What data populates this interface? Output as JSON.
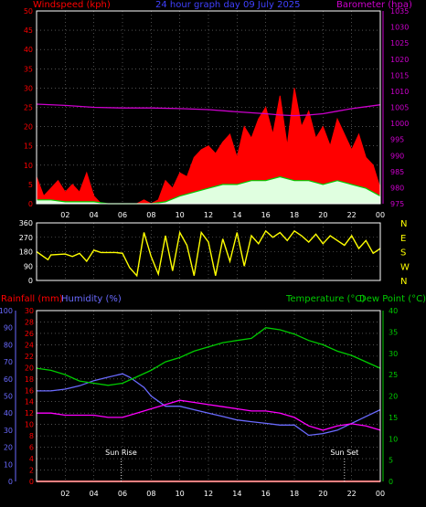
{
  "header": {
    "left_label": "Windspeed (kph)",
    "center_title": "24 hour graph day 09 July 2025",
    "right_label": "Barometer (hpa)"
  },
  "colors": {
    "background": "#000000",
    "frame": "#ffffff",
    "grid": "#7f7f7f",
    "wind_axis": "#ff0000",
    "barometer": "#cc00cc",
    "direction": "#ffff00",
    "gust_fill": "#ff0000",
    "avg_fill": "#e0ffe0",
    "avg_line": "#00cc00",
    "rain": "#ff0000",
    "humidity": "#6a6aff",
    "temperature": "#00cc00",
    "dewpoint": "#ff00ff",
    "sun_markers": "#ffffff"
  },
  "x_axis": {
    "tick_labels": [
      "02",
      "04",
      "06",
      "08",
      "10",
      "12",
      "14",
      "16",
      "18",
      "20",
      "22",
      "00"
    ],
    "range_hours": [
      0,
      24
    ]
  },
  "chart_data": [
    {
      "id": "wind_barometer",
      "type": "area",
      "ylim_left": [
        0,
        50
      ],
      "left_ticks": [
        "0",
        "5",
        "10",
        "15",
        "20",
        "25",
        "30",
        "35",
        "40",
        "45",
        "50"
      ],
      "ylim_right": [
        975,
        1035
      ],
      "right_ticks": [
        "975",
        "980",
        "985",
        "990",
        "995",
        "1000",
        "1005",
        "1010",
        "1015",
        "1020",
        "1025",
        "1030",
        "1035"
      ],
      "series": [
        {
          "name": "Windspeed (kph)",
          "style": "gust",
          "axis": "left",
          "x": [
            0,
            0.5,
            1,
            1.5,
            2,
            2.5,
            3,
            3.5,
            4,
            4.5,
            5,
            5.5,
            6,
            6.5,
            7,
            7.5,
            8,
            8.5,
            9,
            9.5,
            10,
            10.5,
            11,
            11.5,
            12,
            12.5,
            13,
            13.5,
            14,
            14.5,
            15,
            15.5,
            16,
            16.5,
            17,
            17.5,
            18,
            18.5,
            19,
            19.5,
            20,
            20.5,
            21,
            21.5,
            22,
            22.5,
            23,
            23.5,
            24
          ],
          "values": [
            7,
            2,
            4,
            6,
            3,
            5,
            3,
            8,
            2,
            0,
            0,
            0,
            0,
            0,
            0,
            1,
            0,
            1,
            6,
            4,
            8,
            7,
            12,
            14,
            15,
            13,
            16,
            18,
            12,
            20,
            17,
            22,
            25,
            18,
            28,
            15,
            30,
            20,
            24,
            17,
            20,
            15,
            22,
            18,
            14,
            18,
            12,
            10,
            4
          ]
        },
        {
          "name": "Average",
          "style": "avg",
          "axis": "left",
          "x": [
            0,
            1,
            2,
            3,
            4,
            5,
            6,
            7,
            8,
            9,
            10,
            11,
            12,
            13,
            14,
            15,
            16,
            17,
            18,
            19,
            20,
            21,
            22,
            23,
            24
          ],
          "values": [
            1,
            1,
            0.5,
            0.5,
            0.5,
            0,
            0,
            0,
            0,
            0.5,
            2,
            3,
            4,
            5,
            5,
            6,
            6,
            7,
            6,
            6,
            5,
            6,
            5,
            4,
            2
          ]
        },
        {
          "name": "Barometer (hpa)",
          "style": "line",
          "axis": "right",
          "x": [
            0,
            2,
            4,
            6,
            8,
            10,
            12,
            14,
            16,
            17,
            18,
            19,
            20,
            21,
            22,
            23,
            24
          ],
          "values": [
            1006,
            1005.6,
            1005,
            1004.8,
            1004.8,
            1004.6,
            1004.3,
            1003.6,
            1003,
            1002.6,
            1002.4,
            1002.6,
            1003,
            1003.8,
            1004.6,
            1005.2,
            1005.8
          ]
        }
      ]
    },
    {
      "id": "wind_direction",
      "type": "line",
      "ylim": [
        0,
        360
      ],
      "left_ticks": [
        "0",
        "90",
        "180",
        "270",
        "360"
      ],
      "right_labels": [
        "N",
        "W",
        "S",
        "E",
        "N"
      ],
      "series": [
        {
          "name": "Direction",
          "x": [
            0,
            0.8,
            1,
            2,
            2.5,
            3,
            3.5,
            4,
            4.5,
            5,
            5.5,
            6,
            6.5,
            7,
            7.5,
            8,
            8.5,
            9,
            9.5,
            10,
            10.5,
            11,
            11.5,
            12,
            12.5,
            13,
            13.5,
            14,
            14.5,
            15,
            15.5,
            16,
            16.5,
            17,
            17.5,
            18,
            18.5,
            19,
            19.5,
            20,
            20.5,
            21,
            21.5,
            22,
            22.5,
            23,
            23.5,
            24
          ],
          "values": [
            180,
            130,
            160,
            165,
            150,
            170,
            120,
            190,
            175,
            175,
            175,
            170,
            80,
            30,
            300,
            150,
            40,
            280,
            60,
            300,
            220,
            30,
            300,
            240,
            30,
            260,
            120,
            300,
            90,
            280,
            230,
            310,
            270,
            300,
            250,
            310,
            280,
            240,
            290,
            230,
            280,
            250,
            220,
            280,
            200,
            250,
            170,
            200
          ]
        }
      ]
    },
    {
      "id": "temp_humidity_rain",
      "type": "line",
      "left_outer_label": "Rainfall (mm)",
      "left_inner_label": "Humidity (%)",
      "right_label": "Temperature (°C)",
      "right_label2": "Dew Point (°C)",
      "ylim_rain": [
        0,
        30
      ],
      "rain_ticks": [
        "0",
        "2",
        "4",
        "6",
        "8",
        "10",
        "12",
        "14",
        "16",
        "18",
        "20",
        "22",
        "24",
        "26",
        "28",
        "30"
      ],
      "ylim_humidity": [
        0,
        100
      ],
      "humidity_ticks": [
        "0",
        "10",
        "20",
        "30",
        "40",
        "50",
        "60",
        "70",
        "80",
        "90",
        "100"
      ],
      "ylim_temp": [
        0,
        40
      ],
      "temp_ticks": [
        "0",
        "5",
        "10",
        "15",
        "20",
        "25",
        "30",
        "35",
        "40"
      ],
      "annotations": [
        {
          "text": "Sun Rise",
          "x": 5.9
        },
        {
          "text": "Sun Set",
          "x": 21.5
        }
      ],
      "series": [
        {
          "name": "Rainfall (mm)",
          "axis": "rain",
          "x": [
            0,
            24
          ],
          "values": [
            0,
            0
          ]
        },
        {
          "name": "Humidity (%)",
          "axis": "humidity",
          "x": [
            0,
            1,
            2,
            3,
            4,
            5,
            6,
            6.5,
            7,
            7.5,
            8,
            9,
            10,
            11,
            12,
            13,
            14,
            15,
            16,
            17,
            18,
            18.5,
            19,
            20,
            21,
            22,
            23,
            24
          ],
          "values": [
            53,
            53,
            54,
            56,
            59,
            61,
            63,
            61,
            58,
            55,
            50,
            44,
            44,
            42,
            40,
            38,
            36,
            35,
            34,
            33,
            33,
            30,
            27,
            28,
            30,
            34,
            38,
            42
          ]
        },
        {
          "name": "Temperature (°C)",
          "axis": "temp",
          "x": [
            0,
            1,
            2,
            3,
            4,
            5,
            6,
            7,
            8,
            9,
            10,
            11,
            12,
            13,
            14,
            15,
            16,
            17,
            18,
            19,
            20,
            21,
            22,
            23,
            24
          ],
          "values": [
            26.5,
            26,
            25,
            23.5,
            23,
            22.5,
            23,
            24.5,
            26,
            28,
            29,
            30.5,
            31.5,
            32.5,
            33,
            33.5,
            36,
            35.5,
            34.5,
            33,
            32,
            30.5,
            29.5,
            28,
            26.5
          ]
        },
        {
          "name": "Dew Point (°C)",
          "axis": "temp",
          "x": [
            0,
            1,
            2,
            3,
            4,
            5,
            6,
            7,
            8,
            9,
            10,
            11,
            12,
            13,
            14,
            15,
            16,
            17,
            18,
            19,
            20,
            21,
            22,
            23,
            24
          ],
          "values": [
            16,
            16,
            15.5,
            15.5,
            15.5,
            15,
            15,
            16,
            17,
            18,
            19,
            18.5,
            18,
            17.5,
            17,
            16.5,
            16.5,
            16,
            15,
            13,
            12,
            13,
            13.5,
            13,
            12
          ]
        }
      ]
    }
  ]
}
